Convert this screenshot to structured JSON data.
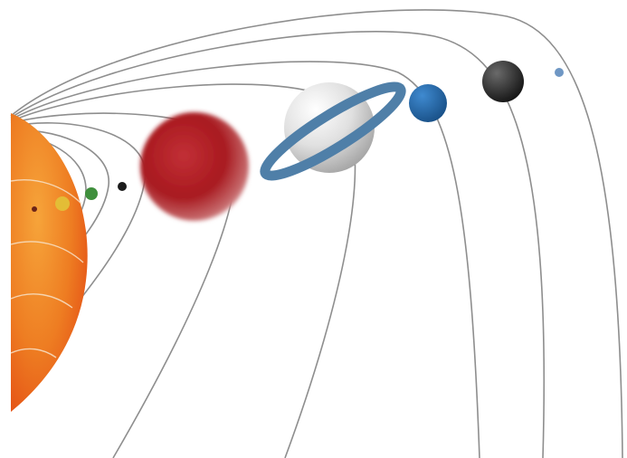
{
  "scene": {
    "background": "#ffffff",
    "orbit_color": "#8e8e8e",
    "sun": {
      "colors": [
        "#f6a43a",
        "#ee7d22",
        "#e34b14"
      ]
    },
    "bodies": [
      {
        "name": "mercury-icon",
        "color": "#6b2418"
      },
      {
        "name": "venus-icon",
        "color": "#e3bd36"
      },
      {
        "name": "earth-icon",
        "color": "#3f8f3c"
      },
      {
        "name": "mars-icon",
        "color": "#1b1b1b"
      },
      {
        "name": "jupiter-icon",
        "color": "#a8191f"
      },
      {
        "name": "saturn-icon",
        "color": "#d8d8d8",
        "ring_color": "#4f7fa8"
      },
      {
        "name": "uranus-icon",
        "color": "#1c5e9a"
      },
      {
        "name": "neptune-icon",
        "color": "#1e1e1e"
      },
      {
        "name": "pluto-icon",
        "color": "#6f97c4"
      }
    ]
  }
}
